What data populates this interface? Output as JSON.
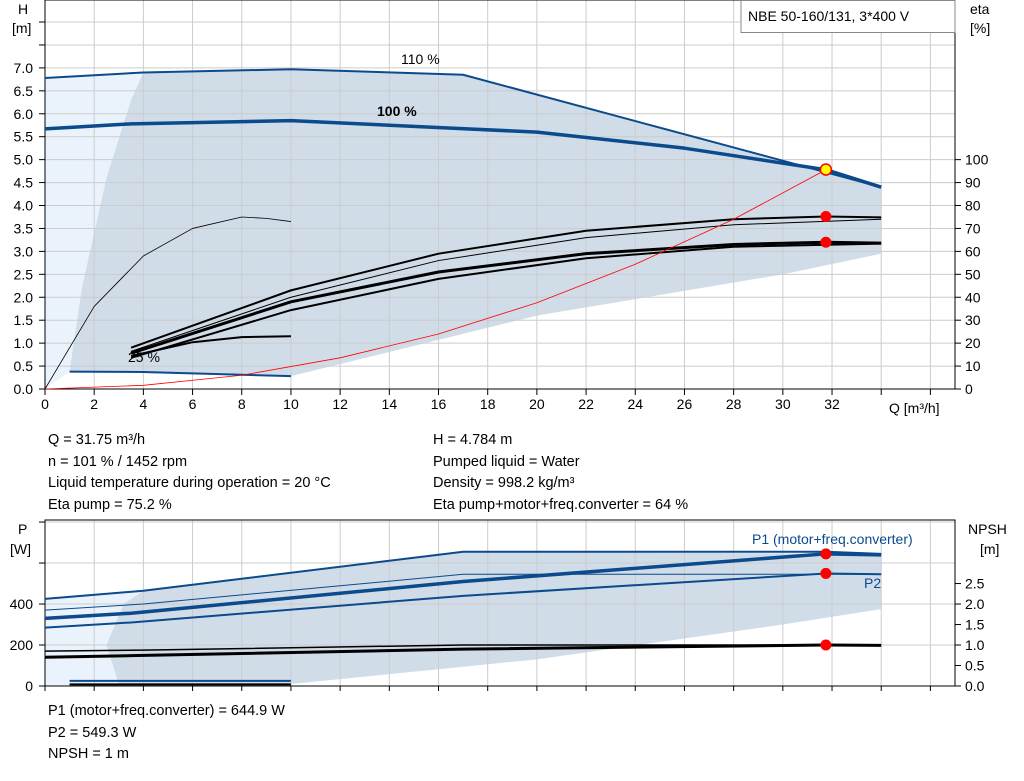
{
  "title_box": "NBE 50-160/131, 3*400 V",
  "chart_data": [
    {
      "type": "line",
      "name": "head-chart",
      "ylabel": "H",
      "yunit": "[m]",
      "y2label": "eta",
      "y2unit": "[%]",
      "xlabel": "Q [m³/h]",
      "xlim": [
        0,
        37
      ],
      "ylim": [
        0,
        8.48
      ],
      "y2lim": [
        0,
        169.6
      ],
      "grid": true,
      "xticks": [
        "0",
        "2",
        "4",
        "6",
        "8",
        "10",
        "12",
        "14",
        "16",
        "18",
        "20",
        "22",
        "24",
        "26",
        "28",
        "30",
        "32"
      ],
      "yticks": [
        "0.0",
        "0.5",
        "1.0",
        "1.5",
        "2.0",
        "2.5",
        "3.0",
        "3.5",
        "4.0",
        "4.5",
        "5.0",
        "5.5",
        "6.0",
        "6.5",
        "7.0"
      ],
      "y2ticks": [
        "0",
        "10",
        "20",
        "30",
        "40",
        "50",
        "60",
        "70",
        "80",
        "90",
        "100"
      ],
      "annotations": [
        "110 %",
        "100 %",
        "25 %"
      ],
      "series": [
        {
          "id": "h110",
          "color": "#0b4a8c",
          "width": 2,
          "x": [
            0,
            4,
            10,
            17,
            34
          ],
          "y": [
            6.78,
            6.9,
            6.97,
            6.85,
            4.4
          ]
        },
        {
          "id": "h100",
          "color": "#0b4a8c",
          "width": 3.5,
          "x": [
            0,
            3.5,
            10,
            20,
            26,
            31.75,
            34
          ],
          "y": [
            5.67,
            5.78,
            5.85,
            5.6,
            5.25,
            4.78,
            4.4
          ]
        },
        {
          "id": "h25",
          "color": "#0b4a8c",
          "width": 2,
          "x": [
            1,
            4,
            10
          ],
          "y": [
            0.38,
            0.37,
            0.28
          ]
        },
        {
          "id": "eta_pump_max",
          "color": "#000",
          "width": 2,
          "x": [
            3.5,
            10,
            16,
            22,
            28,
            31.75,
            34
          ],
          "y": [
            0.9,
            2.15,
            2.95,
            3.45,
            3.7,
            3.76,
            3.74
          ]
        },
        {
          "id": "eta_thin",
          "color": "#000",
          "width": 1,
          "x": [
            3.5,
            10,
            16,
            22,
            28,
            34
          ],
          "y": [
            0.82,
            2.0,
            2.8,
            3.3,
            3.58,
            3.7
          ]
        },
        {
          "id": "eta_total",
          "color": "#000",
          "width": 3,
          "x": [
            3.5,
            10,
            16,
            22,
            28,
            31.75,
            34
          ],
          "y": [
            0.78,
            1.9,
            2.55,
            2.95,
            3.15,
            3.2,
            3.18
          ]
        },
        {
          "id": "eta_low",
          "color": "#000",
          "width": 2,
          "x": [
            3.5,
            10,
            16,
            22,
            28,
            34
          ],
          "y": [
            0.68,
            1.72,
            2.4,
            2.85,
            3.1,
            3.17
          ]
        },
        {
          "id": "eta_small",
          "color": "#000",
          "width": 2,
          "x": [
            3.5,
            6,
            8,
            10
          ],
          "y": [
            0.72,
            1.02,
            1.13,
            1.15
          ]
        },
        {
          "id": "eta_arc",
          "color": "#000",
          "width": 0.8,
          "x": [
            0,
            2,
            4,
            6,
            8,
            9,
            10
          ],
          "y": [
            0,
            1.8,
            2.9,
            3.5,
            3.75,
            3.72,
            3.65
          ]
        },
        {
          "id": "system_curve",
          "color": "#ff0000",
          "width": 0.8,
          "x": [
            0,
            4,
            8,
            12,
            16,
            20,
            24,
            28,
            31.75
          ],
          "y": [
            0,
            0.08,
            0.3,
            0.68,
            1.2,
            1.88,
            2.72,
            3.7,
            4.78
          ]
        }
      ],
      "operating_points": [
        {
          "x": 31.75,
          "y": 4.784,
          "color": "#ffff00"
        },
        {
          "x": 31.75,
          "y": 3.76,
          "color": "#ff0000"
        },
        {
          "x": 31.75,
          "y": 3.2,
          "color": "#ff0000"
        }
      ]
    },
    {
      "type": "line",
      "name": "power-npsh-chart",
      "ylabel": "P",
      "yunit": "[W]",
      "y2label": "NPSH",
      "y2unit": "[m]",
      "xlim": [
        0,
        37
      ],
      "ylim": [
        0,
        810
      ],
      "y2lim": [
        0,
        4.05
      ],
      "grid": true,
      "yticks": [
        "0",
        "200",
        "400"
      ],
      "y2ticks": [
        "0.0",
        "0.5",
        "1.0",
        "1.5",
        "2.0",
        "2.5"
      ],
      "annotations": [
        "P1 (motor+freq.converter)",
        "P2"
      ],
      "series": [
        {
          "id": "p1_110",
          "color": "#0b4a8c",
          "width": 2,
          "x": [
            0,
            4,
            17,
            31.75,
            34
          ],
          "y": [
            425,
            465,
            655,
            655,
            645
          ]
        },
        {
          "id": "p2_110",
          "color": "#0b4a8c",
          "width": 1,
          "x": [
            0,
            4,
            17,
            34
          ],
          "y": [
            370,
            400,
            545,
            545
          ]
        },
        {
          "id": "p1_100",
          "color": "#0b4a8c",
          "width": 3.5,
          "x": [
            0,
            3.5,
            17,
            31.75,
            34
          ],
          "y": [
            330,
            355,
            510,
            645,
            640
          ]
        },
        {
          "id": "p2_100",
          "color": "#0b4a8c",
          "width": 2,
          "x": [
            0,
            3.5,
            17,
            31.75,
            34
          ],
          "y": [
            285,
            310,
            440,
            549,
            545
          ]
        },
        {
          "id": "npsh_110",
          "color": "#000",
          "width": 1.5,
          "x": [
            0,
            4,
            17,
            34
          ],
          "y": [
            170,
            175,
            200,
            200
          ]
        },
        {
          "id": "npsh_100",
          "color": "#000",
          "width": 3,
          "x": [
            0,
            3.5,
            17,
            31.75,
            34
          ],
          "y": [
            140,
            148,
            180,
            200,
            198
          ]
        },
        {
          "id": "p_25",
          "color": "#0b4a8c",
          "width": 2,
          "x": [
            1,
            10
          ],
          "y": [
            25,
            25
          ]
        },
        {
          "id": "npsh_25",
          "color": "#000",
          "width": 2,
          "x": [
            1,
            10
          ],
          "y": [
            8,
            8
          ]
        }
      ],
      "operating_points": [
        {
          "x": 31.75,
          "y": 644.9,
          "color": "#ff0000"
        },
        {
          "x": 31.75,
          "y": 549.3,
          "color": "#ff0000"
        },
        {
          "x": 31.75,
          "y": 200,
          "color": "#ff0000"
        }
      ]
    }
  ],
  "info_top": {
    "left": [
      "Q = 31.75 m³/h",
      "n = 101 % / 1452 rpm",
      "Liquid temperature during operation = 20 °C",
      "Eta pump = 75.2 %"
    ],
    "right": [
      "H = 4.784 m",
      "Pumped liquid = Water",
      "Density = 998.2 kg/m³",
      "Eta pump+motor+freq.converter = 64 %"
    ]
  },
  "info_bottom": [
    "P1 (motor+freq.converter) = 644.9 W",
    "P2 = 549.3 W",
    "NPSH = 1 m"
  ],
  "colors": {
    "area_dark": "#d0dce8",
    "area_light": "#eaf3fb",
    "curve_blue": "#0b4a8c",
    "grid": "#cccccc"
  }
}
